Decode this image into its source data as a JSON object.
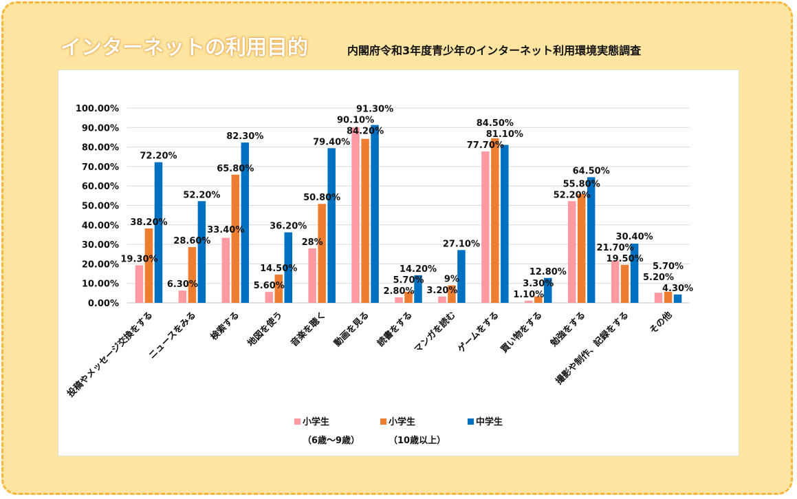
{
  "title": "インターネットの利用目的",
  "subtitle": "内閣府令和3年度青少年のインターネット利用環境実態調査",
  "chart_data": {
    "type": "bar",
    "categories": [
      "投稿やメッセージ交換をする",
      "ニュースをみる",
      "検索する",
      "地図を使う",
      "音楽を聴く",
      "動画を見る",
      "読書をする",
      "マンガを読む",
      "ゲームをする",
      "買い物をする",
      "勉強をする",
      "撮影や制作、記録をする",
      "その他"
    ],
    "series": [
      {
        "name": "小学生（6歳～9歳）",
        "legend_line1": "小学生",
        "legend_line2": "（6歳～9歳）",
        "color": "#ff9aa2",
        "values": [
          19.3,
          6.3,
          33.4,
          5.6,
          28,
          90.1,
          2.8,
          3.2,
          77.7,
          1.1,
          52.2,
          21.7,
          5.2
        ],
        "labels": [
          "19.30%",
          "6.30%",
          "33.40%",
          "5.60%",
          "28%",
          "90.10%",
          "2.80%",
          "3.20%",
          "77.70%",
          "1.10%",
          "52.20%",
          "21.70%",
          "5.20%"
        ]
      },
      {
        "name": "小学生（10歳以上）",
        "legend_line1": "小学生",
        "legend_line2": "（10歳以上）",
        "color": "#ed7d31",
        "values": [
          38.2,
          28.6,
          65.8,
          14.5,
          50.8,
          84.2,
          5.7,
          9,
          84.5,
          3.3,
          55.8,
          19.5,
          5.7
        ],
        "labels": [
          "38.20%",
          "28.60%",
          "65.80%",
          "14.50%",
          "50.80%",
          "84.20%",
          "5.70%",
          "9%",
          "84.50%",
          "3.30%",
          "55.80%",
          "19.50%",
          "5.70%"
        ]
      },
      {
        "name": "中学生",
        "legend_line1": "中学生",
        "legend_line2": "",
        "color": "#0070c0",
        "values": [
          72.2,
          52.2,
          82.3,
          36.2,
          79.4,
          91.3,
          14.2,
          27.1,
          81.1,
          12.8,
          64.5,
          30.4,
          4.3
        ],
        "labels": [
          "72.20%",
          "52.20%",
          "82.30%",
          "36.20%",
          "79.40%",
          "91.30%",
          "14.20%",
          "27.10%",
          "81.10%",
          "12.80%",
          "64.50%",
          "30.40%",
          "4.30%"
        ]
      }
    ],
    "ylim": [
      0,
      100
    ],
    "yticks": [
      "0.00%",
      "10.00%",
      "20.00%",
      "30.00%",
      "40.00%",
      "50.00%",
      "60.00%",
      "70.00%",
      "80.00%",
      "90.00%",
      "100.00%"
    ],
    "grid": true,
    "legend": "bottom"
  }
}
